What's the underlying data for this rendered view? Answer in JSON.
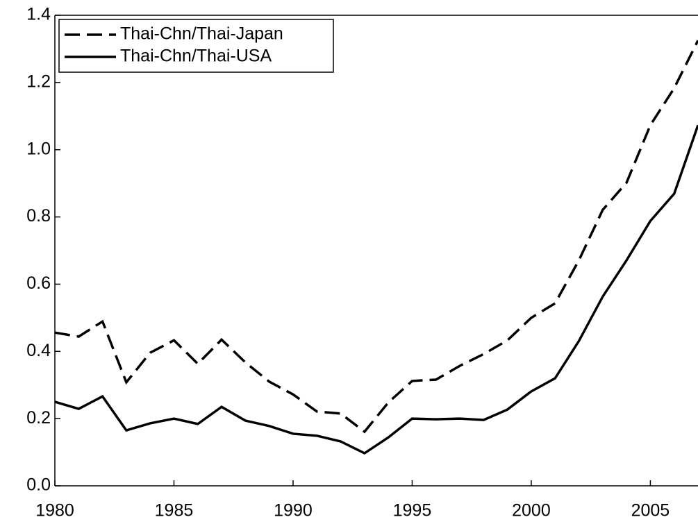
{
  "chart_data": {
    "type": "line",
    "x": [
      1980,
      1981,
      1982,
      1983,
      1984,
      1985,
      1986,
      1987,
      1988,
      1989,
      1990,
      1991,
      1992,
      1993,
      1994,
      1995,
      1996,
      1997,
      1998,
      1999,
      2000,
      2001,
      2002,
      2003,
      2004,
      2005,
      2006,
      2007
    ],
    "series": [
      {
        "name": "Thai-Chn/Thai-Japan",
        "color": "#000000",
        "line_style": "dashed",
        "values": [
          0.456,
          0.444,
          0.489,
          0.308,
          0.396,
          0.433,
          0.363,
          0.435,
          0.367,
          0.31,
          0.272,
          0.221,
          0.215,
          0.161,
          0.248,
          0.312,
          0.316,
          0.357,
          0.392,
          0.433,
          0.5,
          0.543,
          0.671,
          0.821,
          0.902,
          1.073,
          1.183,
          1.325
        ]
      },
      {
        "name": "Thai-Chn/Thai-USA",
        "color": "#000000",
        "line_style": "solid",
        "values": [
          0.25,
          0.229,
          0.266,
          0.165,
          0.186,
          0.2,
          0.184,
          0.235,
          0.194,
          0.178,
          0.155,
          0.149,
          0.132,
          0.097,
          0.144,
          0.2,
          0.198,
          0.2,
          0.196,
          0.227,
          0.281,
          0.32,
          0.431,
          0.563,
          0.671,
          0.788,
          0.869,
          1.073
        ]
      }
    ],
    "xlim": [
      1980,
      2007
    ],
    "xticks": [
      1980,
      1985,
      1990,
      1995,
      2000,
      2005
    ],
    "ylim": [
      0,
      1.4
    ],
    "yticks": [
      {
        "value": 0,
        "label": "0.0"
      },
      0.2,
      0.4,
      0.6,
      0.8,
      {
        "value": 1,
        "label": "1.0"
      },
      1.2,
      1.4
    ],
    "legend": "upper-left"
  }
}
